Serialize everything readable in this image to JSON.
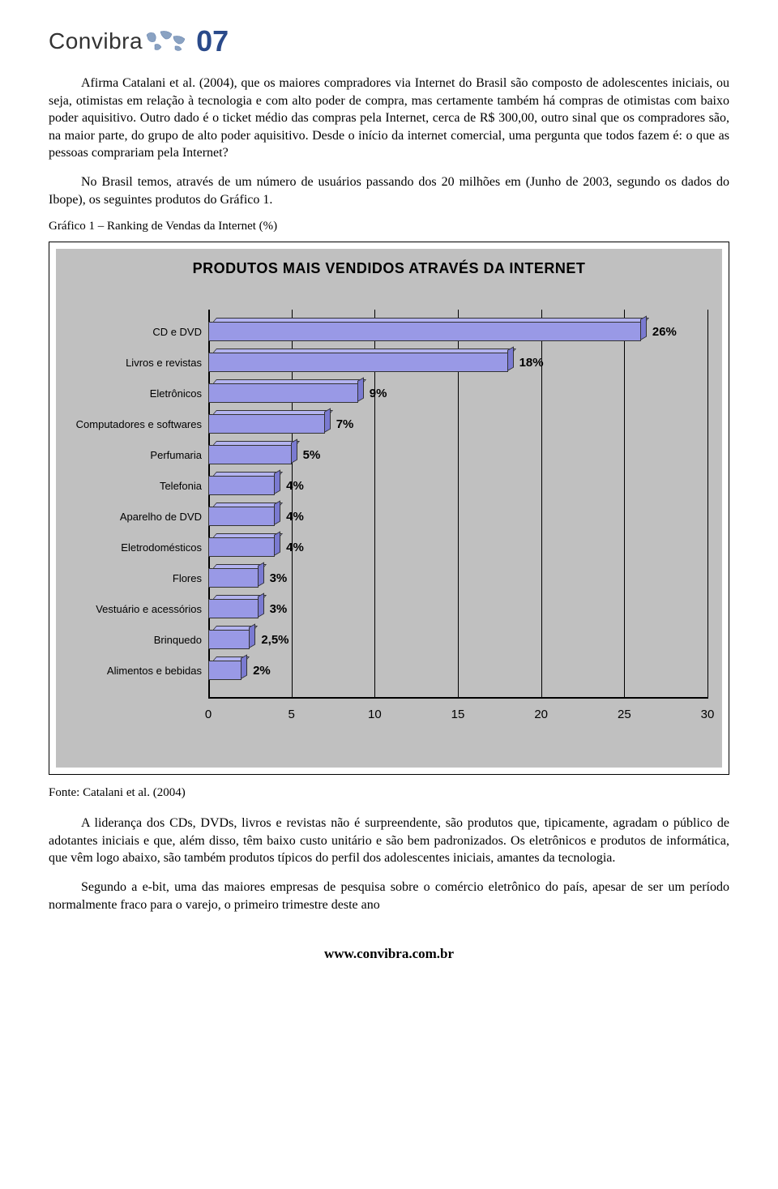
{
  "logo": {
    "brand_text": "Convibra",
    "year_suffix": "07",
    "brand_color": "#2a4a8a",
    "map_fill": "#8aa2c2"
  },
  "paragraphs": {
    "p1": "Afirma Catalani et al. (2004), que os maiores compradores via Internet do Brasil são composto de adolescentes iniciais, ou seja, otimistas em relação à tecnologia e com alto poder de compra, mas certamente também há compras de otimistas com baixo poder aquisitivo. Outro dado é o ticket médio das compras pela Internet, cerca de R$ 300,00, outro sinal que os compradores são, na maior parte, do grupo de alto poder aquisitivo. Desde o início da internet comercial, uma pergunta que todos fazem é: o que as pessoas comprariam pela Internet?",
    "p2": "No Brasil temos, através de um número de usuários passando dos 20 milhões em (Junho de 2003, segundo os dados do Ibope), os seguintes produtos do Gráfico 1.",
    "p3": "A liderança dos CDs, DVDs, livros e revistas não é surpreendente, são produtos que, tipicamente, agradam o público de adotantes iniciais e que, além disso, têm baixo custo unitário e são bem padronizados. Os eletrônicos e produtos de informática, que vêm logo abaixo, são também produtos típicos do perfil dos adolescentes iniciais, amantes da tecnologia.",
    "p4": "Segundo a e-bit, uma das maiores empresas de pesquisa sobre o comércio eletrônico do país, apesar de ser um período normalmente fraco para o varejo, o primeiro trimestre deste ano"
  },
  "chart_caption": "Gráfico 1 – Ranking de Vendas da Internet (%)",
  "chart": {
    "type": "bar-horizontal",
    "title": "PRODUTOS MAIS VENDIDOS ATRAVÉS DA INTERNET",
    "background_color": "#c0c0c0",
    "bar_color": "#9999e6",
    "bar_top_color": "#b3b3f0",
    "bar_side_color": "#7a7ad1",
    "gridline_color": "#000000",
    "axis_color": "#000000",
    "title_fontsize": 18,
    "label_fontsize": 13,
    "value_fontsize": 15,
    "tick_fontsize": 15,
    "x_min": 0,
    "x_max": 30,
    "x_tick_step": 5,
    "x_ticks": [
      0,
      5,
      10,
      15,
      20,
      25,
      30
    ],
    "categories": [
      {
        "label": "CD e DVD",
        "value": 26,
        "value_label": "26%"
      },
      {
        "label": "Livros e revistas",
        "value": 18,
        "value_label": "18%"
      },
      {
        "label": "Eletrônicos",
        "value": 9,
        "value_label": "9%"
      },
      {
        "label": "Computadores e softwares",
        "value": 7,
        "value_label": "7%"
      },
      {
        "label": "Perfumaria",
        "value": 5,
        "value_label": "5%"
      },
      {
        "label": "Telefonia",
        "value": 4,
        "value_label": "4%"
      },
      {
        "label": "Aparelho de DVD",
        "value": 4,
        "value_label": "4%"
      },
      {
        "label": "Eletrodomésticos",
        "value": 4,
        "value_label": "4%"
      },
      {
        "label": "Flores",
        "value": 3,
        "value_label": "3%"
      },
      {
        "label": "Vestuário e acessórios",
        "value": 3,
        "value_label": "3%"
      },
      {
        "label": "Brinquedo",
        "value": 2.5,
        "value_label": "2,5%"
      },
      {
        "label": "Alimentos e bebidas",
        "value": 2,
        "value_label": "2%"
      }
    ]
  },
  "source_line": "Fonte: Catalani et al. (2004)",
  "footer_url": "www.convibra.com.br"
}
